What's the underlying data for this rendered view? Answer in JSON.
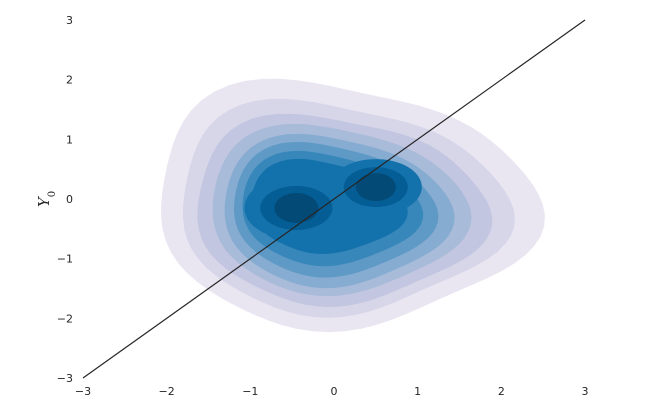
{
  "chart_data": {
    "type": "kde-contour",
    "title": "",
    "xlabel": "",
    "ylabel": "Y",
    "ylabel_subscript": "0",
    "xlim": [
      -3,
      3
    ],
    "ylim": [
      -3,
      3
    ],
    "x_ticks": [
      -3,
      -2,
      -1,
      0,
      1,
      2,
      3
    ],
    "y_ticks": [
      -3,
      -2,
      -1,
      0,
      1,
      2,
      3
    ],
    "x_tick_labels": [
      "−3",
      "−2",
      "−1",
      "0",
      "1",
      "2",
      "3"
    ],
    "y_tick_labels": [
      "−3",
      "−2",
      "−1",
      "0",
      "1",
      "2",
      "3"
    ],
    "grid": false,
    "colormap": "PuBu",
    "level_colors": [
      "#e9e6f2",
      "#d7d6e9",
      "#c3c6e0",
      "#a8bbd9",
      "#86acd1",
      "#5f9ac6",
      "#3787bb",
      "#1372ab",
      "#045d94",
      "#034a76"
    ],
    "density_modes": [
      {
        "x": -0.45,
        "y": -0.15
      },
      {
        "x": 0.5,
        "y": 0.2
      }
    ],
    "reference_line": {
      "x": [
        -3,
        3
      ],
      "y": [
        -3,
        3
      ],
      "color": "#262626"
    }
  }
}
